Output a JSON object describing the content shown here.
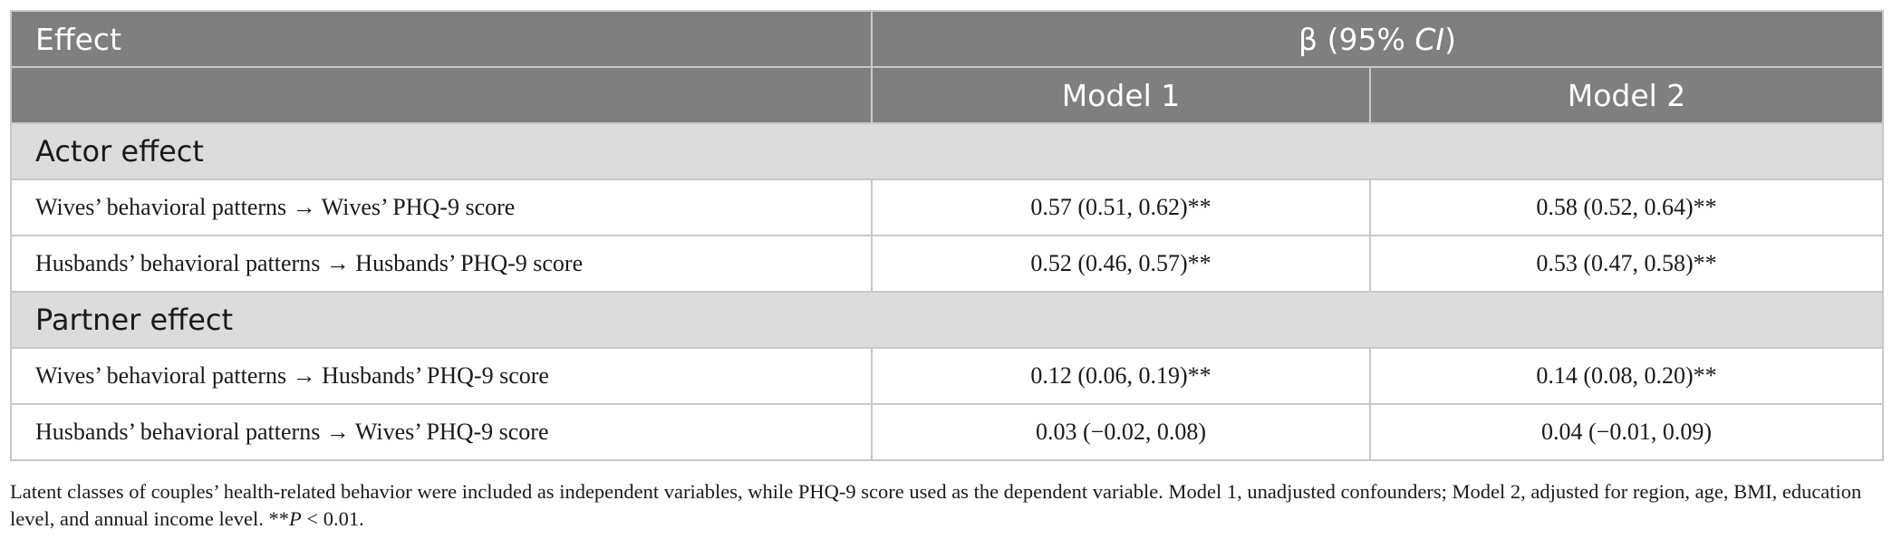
{
  "table": {
    "header": {
      "effect": "Effect",
      "beta_main": "β (95% ",
      "beta_ci": "CI",
      "beta_close": ")",
      "model1": "Model 1",
      "model2": "Model 2"
    },
    "sections": [
      {
        "title": "Actor effect",
        "rows": [
          {
            "label": "Wives’ behavioral patterns → Wives’ PHQ-9 score",
            "model1": "0.57 (0.51, 0.62)**",
            "model2": "0.58 (0.52, 0.64)**"
          },
          {
            "label": "Husbands’ behavioral patterns → Husbands’ PHQ-9 score",
            "model1": "0.52 (0.46, 0.57)**",
            "model2": "0.53 (0.47, 0.58)**"
          }
        ]
      },
      {
        "title": "Partner effect",
        "rows": [
          {
            "label": "Wives’ behavioral patterns → Husbands’ PHQ-9 score",
            "model1": "0.12 (0.06, 0.19)**",
            "model2": "0.14 (0.08, 0.20)**"
          },
          {
            "label": "Husbands’ behavioral patterns → Wives’ PHQ-9 score",
            "model1": "0.03 (−0.02, 0.08)",
            "model2": "0.04 (−0.01, 0.09)"
          }
        ]
      }
    ]
  },
  "footnote": {
    "text": "Latent classes of couples’ health-related behavior were included as independent variables, while PHQ-9 score used as the dependent variable. Model 1, unadjusted confounders; Model 2, adjusted for region, age, BMI, education level, and annual income level. **",
    "p_symbol": "P",
    "p_rest": " < 0.01."
  }
}
